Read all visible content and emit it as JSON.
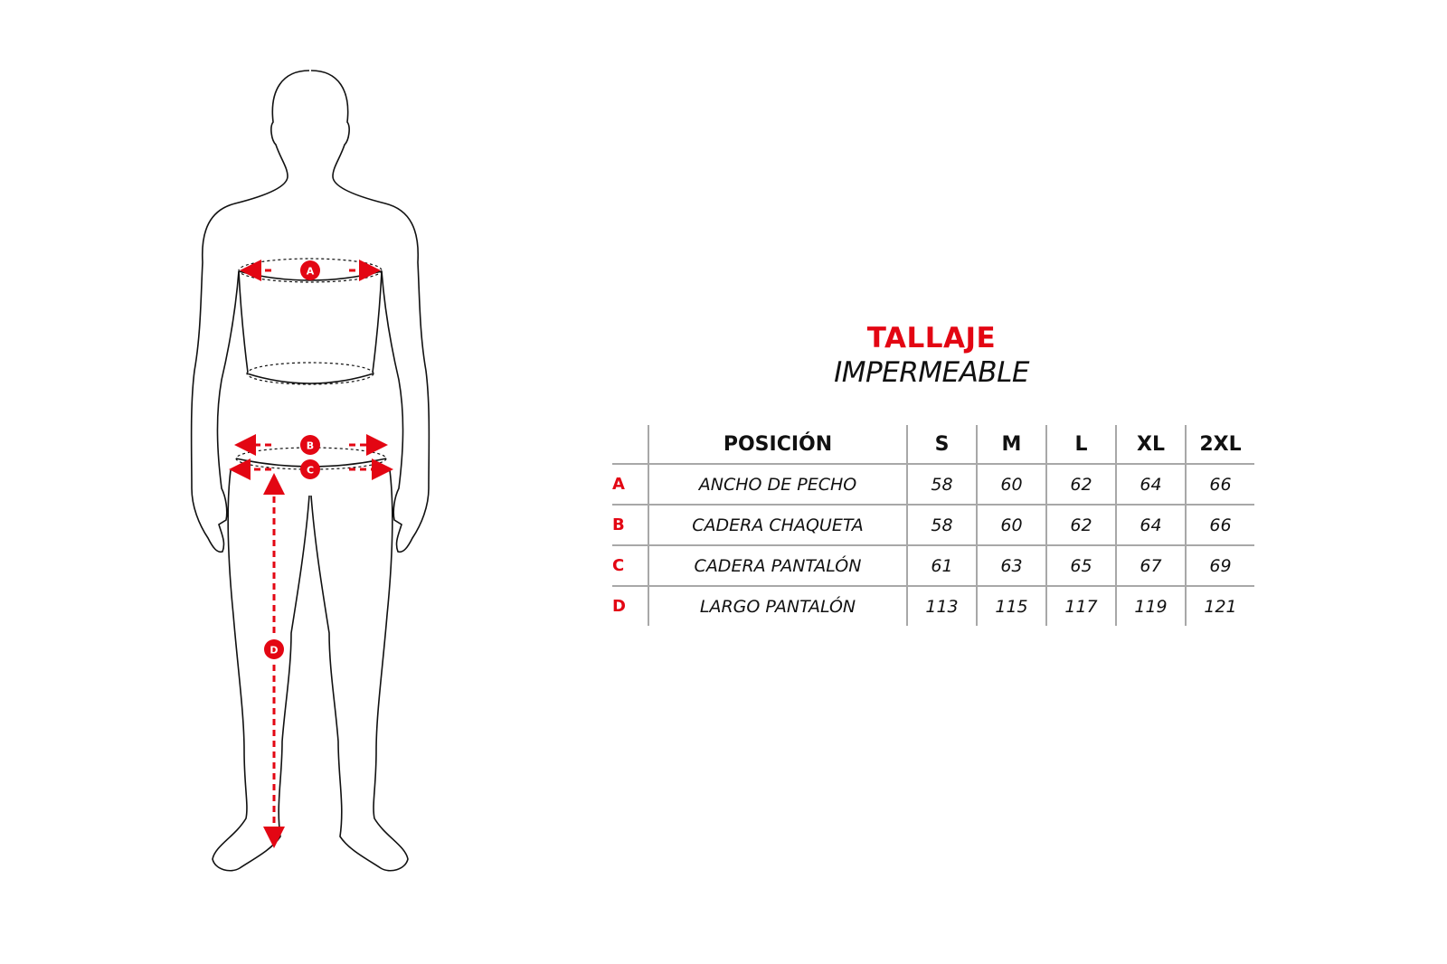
{
  "title": "TALLAJE",
  "subtitle": "IMPERMEABLE",
  "accent_color": "#e30613",
  "figure": {
    "markers": [
      "A",
      "B",
      "C",
      "D"
    ]
  },
  "table": {
    "headers": [
      "POSICIÓN",
      "S",
      "M",
      "L",
      "XL",
      "2XL"
    ],
    "rows": [
      {
        "code": "A",
        "label": "ANCHO DE PECHO",
        "values": [
          "58",
          "60",
          "62",
          "64",
          "66"
        ]
      },
      {
        "code": "B",
        "label": "CADERA CHAQUETA",
        "values": [
          "58",
          "60",
          "62",
          "64",
          "66"
        ]
      },
      {
        "code": "C",
        "label": "CADERA PANTALÓN",
        "values": [
          "61",
          "63",
          "65",
          "67",
          "69"
        ]
      },
      {
        "code": "D",
        "label": "LARGO PANTALÓN",
        "values": [
          "113",
          "115",
          "117",
          "119",
          "121"
        ]
      }
    ]
  }
}
